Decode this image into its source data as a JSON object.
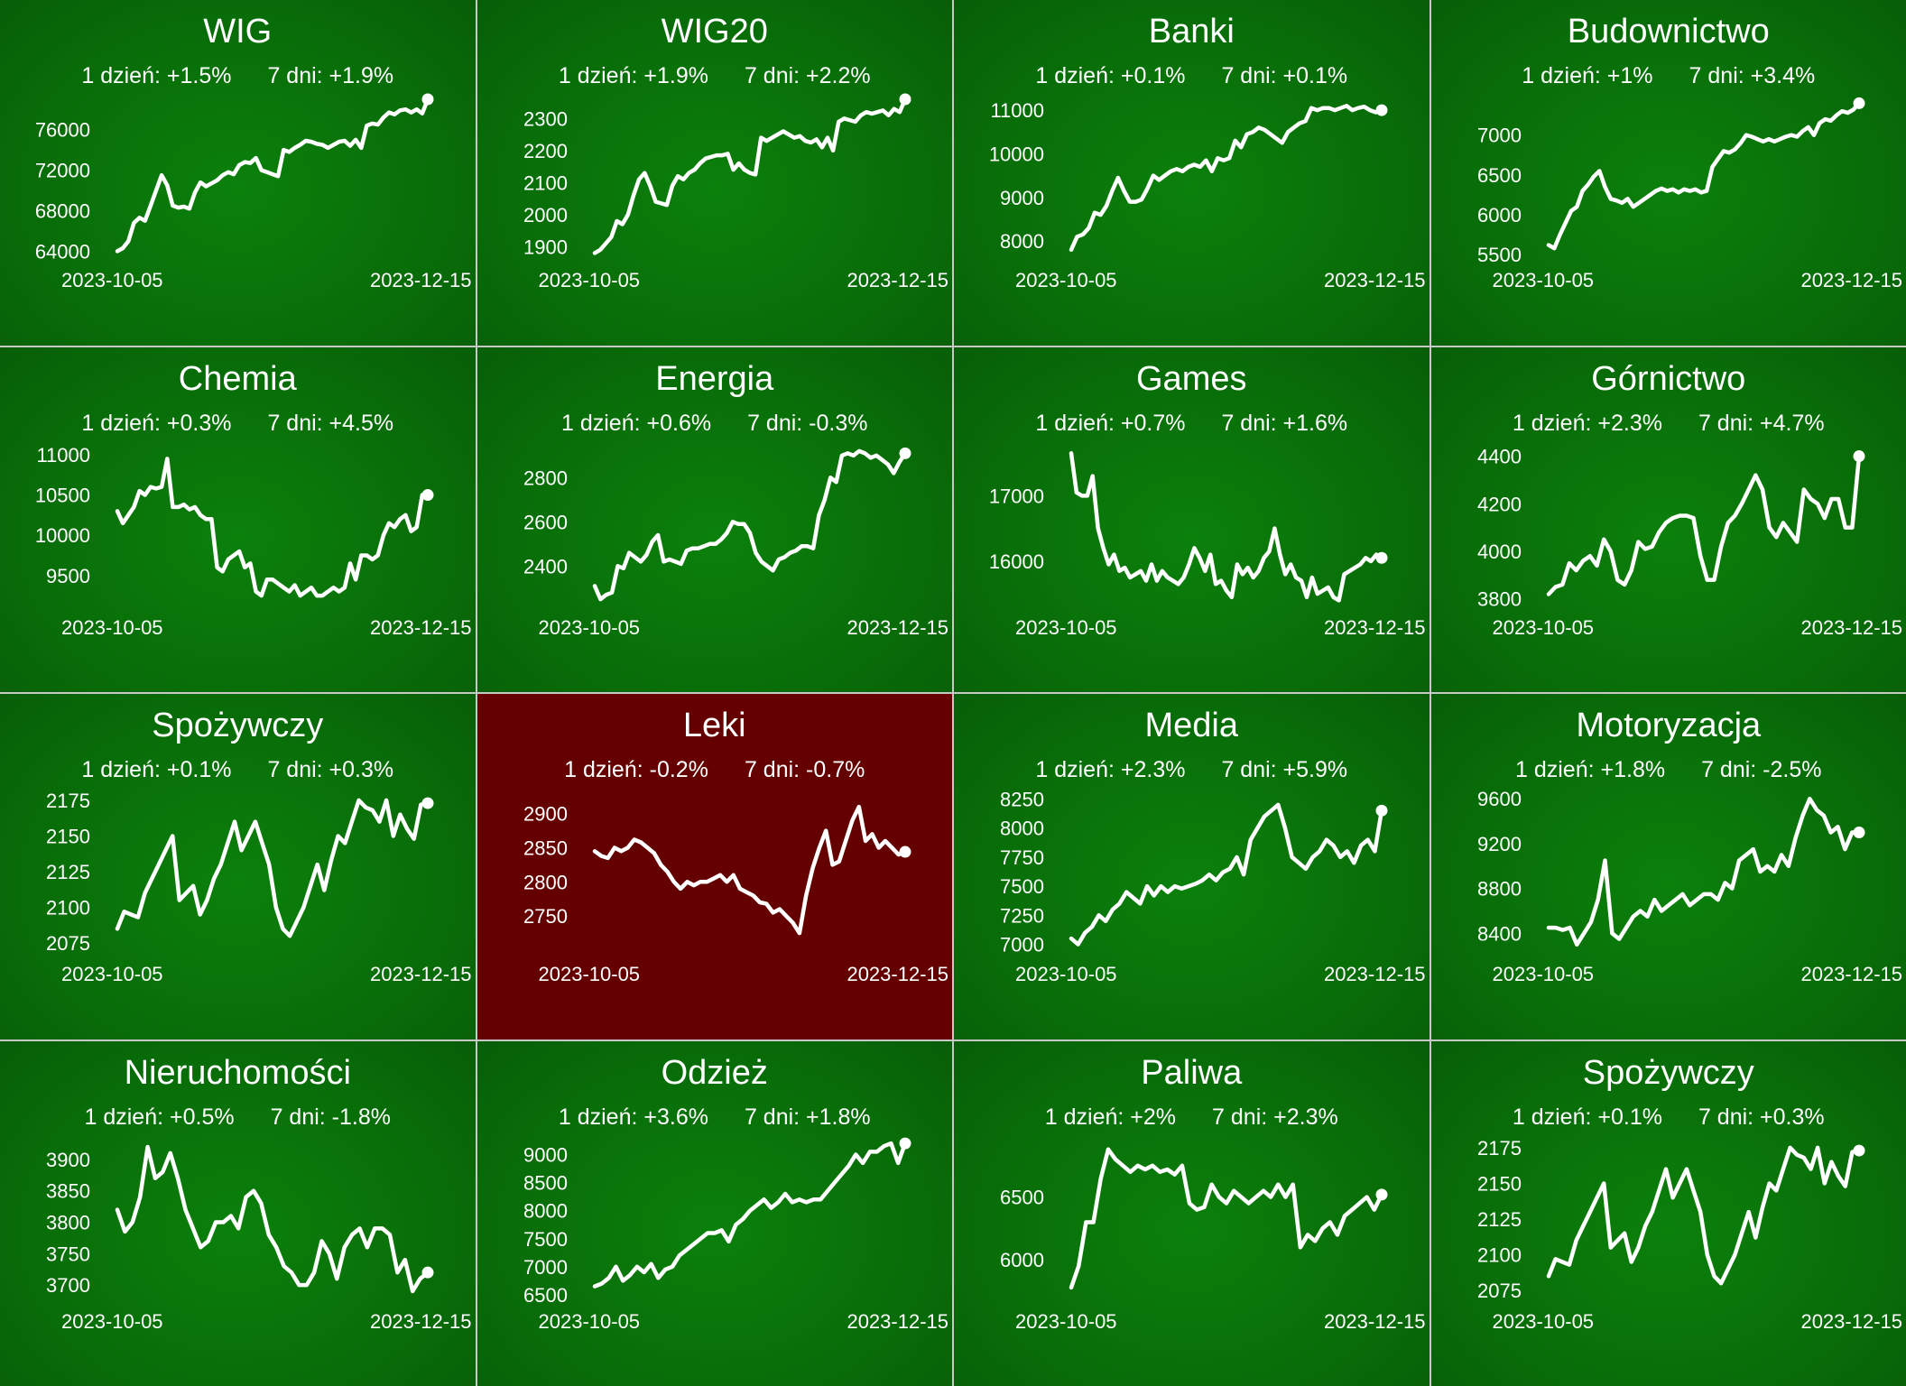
{
  "colors": {
    "up": "#0a7a0a",
    "down": "#640000",
    "line": "#ffffff"
  },
  "chart_data": [
    {
      "type": "line",
      "title": "WIG",
      "day_label": "1 dzień: +1.5%",
      "week_label": "7 dni: +1.9%",
      "x_start": "2023-10-05",
      "x_end": "2023-12-15",
      "trend": "up",
      "ylim": [
        63500,
        79000
      ],
      "yticks": [
        64000,
        68000,
        72000,
        76000
      ],
      "values": [
        64000,
        64300,
        65000,
        66800,
        67300,
        67000,
        68500,
        70000,
        71500,
        70500,
        68500,
        68300,
        68400,
        68200,
        69800,
        70800,
        70400,
        70700,
        71000,
        71500,
        71800,
        71600,
        72500,
        72800,
        72700,
        73200,
        72000,
        71800,
        71600,
        71400,
        74000,
        73800,
        74200,
        74500,
        74900,
        74800,
        74600,
        74500,
        74200,
        74500,
        74800,
        74900,
        74400,
        75000,
        74200,
        76400,
        76600,
        76500,
        77200,
        77700,
        77500,
        77900,
        78000,
        77700,
        78000,
        77600,
        79000
      ]
    },
    {
      "type": "line",
      "title": "WIG20",
      "day_label": "1 dzień: +1.9%",
      "week_label": "7 dni: +2.2%",
      "x_start": "2023-10-05",
      "x_end": "2023-12-15",
      "trend": "up",
      "ylim": [
        1870,
        2360
      ],
      "yticks": [
        1900,
        2000,
        2100,
        2200,
        2300
      ],
      "values": [
        1880,
        1890,
        1910,
        1930,
        1980,
        1970,
        2000,
        2060,
        2110,
        2130,
        2090,
        2040,
        2035,
        2030,
        2090,
        2120,
        2110,
        2130,
        2140,
        2160,
        2175,
        2180,
        2185,
        2185,
        2190,
        2140,
        2160,
        2140,
        2130,
        2125,
        2240,
        2230,
        2240,
        2250,
        2260,
        2250,
        2240,
        2245,
        2230,
        2225,
        2235,
        2210,
        2240,
        2200,
        2290,
        2300,
        2295,
        2290,
        2310,
        2320,
        2315,
        2320,
        2325,
        2310,
        2330,
        2320,
        2360
      ]
    },
    {
      "type": "line",
      "title": "Banki",
      "day_label": "1 dzień: +0.1%",
      "week_label": "7 dni: +0.1%",
      "x_start": "2023-10-05",
      "x_end": "2023-12-15",
      "trend": "up",
      "ylim": [
        7650,
        11250
      ],
      "yticks": [
        8000,
        9000,
        10000,
        11000
      ],
      "values": [
        7800,
        8100,
        8150,
        8300,
        8650,
        8600,
        8800,
        9150,
        9450,
        9150,
        8900,
        8900,
        8950,
        9200,
        9500,
        9400,
        9500,
        9600,
        9650,
        9600,
        9700,
        9750,
        9700,
        9850,
        9600,
        9900,
        9850,
        9900,
        10300,
        10150,
        10450,
        10500,
        10600,
        10550,
        10450,
        10350,
        10250,
        10500,
        10600,
        10700,
        10750,
        11050,
        11000,
        11050,
        11050,
        11000,
        11050,
        11100,
        11000,
        11050,
        11080,
        11000,
        10950,
        11000
      ]
    },
    {
      "type": "line",
      "title": "Budownictwo",
      "day_label": "1 dzień: +1%",
      "week_label": "7 dni: +3.4%",
      "x_start": "2023-10-05",
      "x_end": "2023-12-15",
      "trend": "up",
      "ylim": [
        5480,
        7450
      ],
      "yticks": [
        5500,
        6000,
        6500,
        7000
      ],
      "values": [
        5620,
        5580,
        5750,
        5900,
        6050,
        6100,
        6300,
        6380,
        6480,
        6550,
        6350,
        6200,
        6180,
        6150,
        6200,
        6100,
        6150,
        6200,
        6250,
        6300,
        6330,
        6300,
        6320,
        6280,
        6320,
        6300,
        6320,
        6280,
        6300,
        6600,
        6700,
        6800,
        6780,
        6820,
        6900,
        7000,
        6980,
        6950,
        6920,
        6950,
        6920,
        6950,
        6980,
        7000,
        6980,
        7050,
        7100,
        7000,
        7150,
        7200,
        7180,
        7250,
        7300,
        7280,
        7320,
        7400
      ]
    },
    {
      "type": "line",
      "title": "Chemia",
      "day_label": "1 dzień: +0.3%",
      "week_label": "7 dni: +4.5%",
      "x_start": "2023-10-05",
      "x_end": "2023-12-15",
      "trend": "up",
      "ylim": [
        9150,
        11100
      ],
      "yticks": [
        9500,
        10000,
        10500,
        11000
      ],
      "values": [
        10300,
        10150,
        10250,
        10350,
        10550,
        10500,
        10600,
        10580,
        10600,
        10950,
        10350,
        10350,
        10380,
        10320,
        10350,
        10250,
        10200,
        10200,
        9600,
        9550,
        9700,
        9750,
        9800,
        9600,
        9650,
        9300,
        9250,
        9450,
        9450,
        9400,
        9350,
        9300,
        9380,
        9250,
        9300,
        9350,
        9250,
        9250,
        9300,
        9350,
        9300,
        9350,
        9650,
        9450,
        9750,
        9750,
        9700,
        9750,
        10000,
        10150,
        10100,
        10200,
        10250,
        10050,
        10100,
        10500,
        10500
      ]
    },
    {
      "type": "line",
      "title": "Energia",
      "day_label": "1 dzień: +0.6%",
      "week_label": "7 dni: -0.3%",
      "x_start": "2023-10-05",
      "x_end": "2023-12-15",
      "trend": "up",
      "ylim": [
        2230,
        2940
      ],
      "yticks": [
        2400,
        2600,
        2800
      ],
      "values": [
        2310,
        2250,
        2270,
        2280,
        2400,
        2390,
        2460,
        2440,
        2420,
        2450,
        2510,
        2540,
        2420,
        2430,
        2420,
        2410,
        2470,
        2480,
        2480,
        2490,
        2500,
        2500,
        2520,
        2550,
        2600,
        2590,
        2590,
        2550,
        2460,
        2420,
        2400,
        2380,
        2430,
        2440,
        2460,
        2470,
        2490,
        2490,
        2480,
        2630,
        2700,
        2800,
        2780,
        2900,
        2910,
        2900,
        2920,
        2910,
        2890,
        2900,
        2880,
        2860,
        2820,
        2870,
        2910
      ]
    },
    {
      "type": "line",
      "title": "Games",
      "day_label": "1 dzień: +0.7%",
      "week_label": "7 dni: +1.6%",
      "x_start": "2023-10-05",
      "x_end": "2023-12-15",
      "trend": "up",
      "ylim": [
        15350,
        17750
      ],
      "yticks": [
        16000,
        17000
      ],
      "values": [
        17650,
        17050,
        17000,
        17000,
        17300,
        16500,
        16200,
        15950,
        16100,
        15850,
        15900,
        15750,
        15800,
        15850,
        15700,
        15950,
        15700,
        15850,
        15750,
        15700,
        15650,
        15750,
        15950,
        16200,
        16050,
        15850,
        16100,
        15650,
        15700,
        15550,
        15450,
        15950,
        15800,
        15900,
        15750,
        15850,
        16050,
        16150,
        16500,
        16100,
        15800,
        15950,
        15750,
        15700,
        15450,
        15750,
        15500,
        15550,
        15600,
        15450,
        15400,
        15800,
        15850,
        15900,
        15950,
        16050,
        16000,
        16100,
        16050
      ]
    },
    {
      "type": "line",
      "title": "Górnictwo",
      "day_label": "1 dzień: +2.3%",
      "week_label": "7 dni: +4.7%",
      "x_start": "2023-10-05",
      "x_end": "2023-12-15",
      "trend": "up",
      "ylim": [
        3780,
        4440
      ],
      "yticks": [
        3800,
        4000,
        4200,
        4400
      ],
      "values": [
        3820,
        3850,
        3860,
        3950,
        3920,
        3960,
        3980,
        3940,
        4050,
        4000,
        3880,
        3860,
        3920,
        4040,
        4010,
        4020,
        4080,
        4120,
        4140,
        4150,
        4150,
        4140,
        3980,
        3880,
        3880,
        4020,
        4120,
        4150,
        4200,
        4260,
        4320,
        4260,
        4100,
        4060,
        4120,
        4080,
        4040,
        4260,
        4220,
        4200,
        4140,
        4220,
        4220,
        4100,
        4100,
        4400
      ]
    },
    {
      "type": "line",
      "title": "Spożywczy",
      "day_label": "1 dzień: +0.1%",
      "week_label": "7 dni: +0.3%",
      "x_start": "2023-10-05",
      "x_end": "2023-12-15",
      "trend": "up",
      "ylim": [
        2070,
        2180
      ],
      "yticks": [
        2075,
        2100,
        2125,
        2150,
        2175
      ],
      "values": [
        2085,
        2097,
        2095,
        2093,
        2110,
        2120,
        2130,
        2140,
        2150,
        2105,
        2110,
        2115,
        2095,
        2105,
        2120,
        2130,
        2145,
        2160,
        2140,
        2150,
        2160,
        2145,
        2130,
        2100,
        2085,
        2080,
        2090,
        2100,
        2115,
        2130,
        2112,
        2133,
        2150,
        2145,
        2160,
        2175,
        2170,
        2168,
        2160,
        2175,
        2150,
        2165,
        2155,
        2148,
        2172,
        2173
      ]
    },
    {
      "type": "line",
      "title": "Leki",
      "day_label": "1 dzień: -0.2%",
      "week_label": "7 dni: -0.7%",
      "x_start": "2023-10-05",
      "x_end": "2023-12-15",
      "trend": "down",
      "ylim": [
        2700,
        2930
      ],
      "yticks": [
        2750,
        2800,
        2850,
        2900
      ],
      "values": [
        2845,
        2838,
        2835,
        2850,
        2845,
        2850,
        2862,
        2858,
        2850,
        2842,
        2825,
        2815,
        2800,
        2790,
        2800,
        2795,
        2800,
        2800,
        2805,
        2810,
        2800,
        2810,
        2790,
        2785,
        2780,
        2770,
        2768,
        2755,
        2760,
        2750,
        2740,
        2725,
        2780,
        2820,
        2850,
        2875,
        2825,
        2830,
        2860,
        2890,
        2910,
        2860,
        2870,
        2850,
        2860,
        2850,
        2840,
        2844
      ]
    },
    {
      "type": "line",
      "title": "Media",
      "day_label": "1 dzień: +2.3%",
      "week_label": "7 dni: +5.9%",
      "x_start": "2023-10-05",
      "x_end": "2023-12-15",
      "trend": "up",
      "ylim": [
        6950,
        8300
      ],
      "yticks": [
        7000,
        7250,
        7500,
        7750,
        8000,
        8250
      ],
      "values": [
        7050,
        7000,
        7100,
        7150,
        7250,
        7200,
        7300,
        7350,
        7450,
        7400,
        7350,
        7500,
        7420,
        7500,
        7450,
        7500,
        7480,
        7500,
        7520,
        7550,
        7600,
        7550,
        7620,
        7650,
        7750,
        7600,
        7900,
        8000,
        8100,
        8150,
        8200,
        8000,
        7750,
        7700,
        7650,
        7750,
        7800,
        7900,
        7850,
        7750,
        7800,
        7700,
        7850,
        7900,
        7800,
        8150
      ]
    },
    {
      "type": "line",
      "title": "Motoryzacja",
      "day_label": "1 dzień: +1.8%",
      "week_label": "7 dni: -2.5%",
      "x_start": "2023-10-05",
      "x_end": "2023-12-15",
      "trend": "up",
      "ylim": [
        8250,
        9650
      ],
      "yticks": [
        8400,
        8800,
        9200,
        9600
      ],
      "values": [
        8450,
        8450,
        8430,
        8450,
        8300,
        8400,
        8500,
        8700,
        9050,
        8400,
        8350,
        8450,
        8550,
        8600,
        8550,
        8700,
        8600,
        8650,
        8700,
        8750,
        8650,
        8700,
        8750,
        8750,
        8700,
        8850,
        8800,
        9050,
        9100,
        9150,
        8950,
        9000,
        8950,
        9100,
        9000,
        9250,
        9450,
        9600,
        9500,
        9450,
        9300,
        9350,
        9150,
        9300,
        9300
      ]
    },
    {
      "type": "line",
      "title": "Nieruchomości",
      "day_label": "1 dzień: +0.5%",
      "week_label": "7 dni: -1.8%",
      "x_start": "2023-10-05",
      "x_end": "2023-12-15",
      "trend": "up",
      "ylim": [
        3680,
        3930
      ],
      "yticks": [
        3700,
        3750,
        3800,
        3850,
        3900
      ],
      "values": [
        3820,
        3785,
        3800,
        3840,
        3920,
        3870,
        3880,
        3910,
        3870,
        3820,
        3790,
        3760,
        3770,
        3800,
        3800,
        3810,
        3790,
        3840,
        3850,
        3830,
        3780,
        3760,
        3730,
        3720,
        3700,
        3700,
        3720,
        3770,
        3750,
        3710,
        3760,
        3780,
        3790,
        3760,
        3790,
        3790,
        3780,
        3720,
        3740,
        3690,
        3710,
        3720
      ]
    },
    {
      "type": "line",
      "title": "Odzież",
      "day_label": "1 dzień: +3.6%",
      "week_label": "7 dni: +1.8%",
      "x_start": "2023-10-05",
      "x_end": "2023-12-15",
      "trend": "up",
      "ylim": [
        6450,
        9250
      ],
      "yticks": [
        6500,
        7000,
        7500,
        8000,
        8500,
        9000
      ],
      "values": [
        6650,
        6700,
        6800,
        7000,
        6750,
        6850,
        7000,
        6900,
        7050,
        6800,
        6950,
        7000,
        7200,
        7300,
        7400,
        7500,
        7600,
        7600,
        7650,
        7450,
        7750,
        7850,
        8000,
        8100,
        8200,
        8050,
        8150,
        8300,
        8150,
        8200,
        8150,
        8200,
        8200,
        8350,
        8500,
        8650,
        8800,
        9000,
        8850,
        9050,
        9050,
        9150,
        9200,
        8850,
        9200
      ]
    },
    {
      "type": "line",
      "title": "Paliwa",
      "day_label": "1 dzień: +2%",
      "week_label": "7 dni: +2.3%",
      "x_start": "2023-10-05",
      "x_end": "2023-12-15",
      "trend": "up",
      "ylim": [
        5700,
        6950
      ],
      "yticks": [
        6000,
        6500
      ],
      "values": [
        5780,
        5950,
        6300,
        6300,
        6650,
        6880,
        6800,
        6750,
        6700,
        6750,
        6720,
        6750,
        6700,
        6720,
        6680,
        6750,
        6450,
        6400,
        6420,
        6600,
        6500,
        6450,
        6550,
        6500,
        6450,
        6500,
        6550,
        6500,
        6600,
        6500,
        6600,
        6100,
        6200,
        6150,
        6250,
        6300,
        6200,
        6350,
        6400,
        6450,
        6500,
        6400,
        6520
      ]
    },
    {
      "type": "line",
      "title": "Spożywczy",
      "day_label": "1 dzień: +0.1%",
      "week_label": "7 dni: +0.3%",
      "x_start": "2023-10-05",
      "x_end": "2023-12-15",
      "trend": "up",
      "ylim": [
        2070,
        2180
      ],
      "yticks": [
        2075,
        2100,
        2125,
        2150,
        2175
      ],
      "values": [
        2085,
        2097,
        2095,
        2093,
        2110,
        2120,
        2130,
        2140,
        2150,
        2105,
        2110,
        2115,
        2095,
        2105,
        2120,
        2130,
        2145,
        2160,
        2140,
        2150,
        2160,
        2145,
        2130,
        2100,
        2085,
        2080,
        2090,
        2100,
        2115,
        2130,
        2112,
        2133,
        2150,
        2145,
        2160,
        2175,
        2170,
        2168,
        2160,
        2175,
        2150,
        2165,
        2155,
        2148,
        2172,
        2173
      ]
    }
  ]
}
